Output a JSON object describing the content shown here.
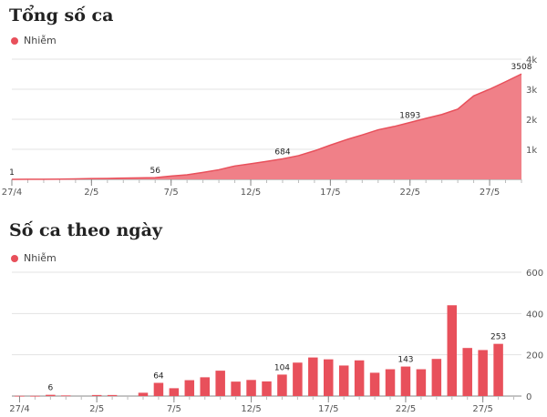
{
  "colors": {
    "series": "#e8505b",
    "area_fill": "#f08088",
    "grid": "#e3e3e3",
    "axis": "#888888"
  },
  "chart_data": [
    {
      "type": "area",
      "title": "Tổng số ca",
      "legend": [
        "Nhiễm"
      ],
      "legend_position": "top-left",
      "xlabel": "",
      "ylabel": "",
      "grid": true,
      "ylim": [
        0,
        4000
      ],
      "y_ticks": [
        1000,
        2000,
        3000,
        4000
      ],
      "y_tick_labels": [
        "1k",
        "2k",
        "3k",
        "4k"
      ],
      "x_tick_labels": [
        "27/4",
        "2/5",
        "7/5",
        "12/5",
        "17/5",
        "22/5",
        "27/5"
      ],
      "x": [
        "27/4",
        "28/4",
        "29/4",
        "30/4",
        "1/5",
        "2/5",
        "3/5",
        "4/5",
        "5/5",
        "6/5",
        "7/5",
        "8/5",
        "9/5",
        "10/5",
        "11/5",
        "12/5",
        "13/5",
        "14/5",
        "15/5",
        "16/5",
        "17/5",
        "18/5",
        "19/5",
        "20/5",
        "21/5",
        "22/5",
        "23/5",
        "24/5",
        "25/5",
        "26/5",
        "27/5",
        "28/5",
        "29/5"
      ],
      "series": [
        {
          "name": "Nhiễm",
          "values": [
            1,
            2,
            4,
            8,
            15,
            25,
            32,
            40,
            48,
            56,
            110,
            150,
            230,
            320,
            445,
            520,
            600,
            684,
            790,
            950,
            1140,
            1320,
            1480,
            1650,
            1760,
            1893,
            2030,
            2160,
            2340,
            2780,
            3000,
            3250,
            3508
          ]
        }
      ],
      "data_labels": [
        {
          "x": "27/4",
          "value": "1"
        },
        {
          "x": "6/5",
          "value": "56"
        },
        {
          "x": "14/5",
          "value": "684"
        },
        {
          "x": "22/5",
          "value": "1893"
        },
        {
          "x": "29/5",
          "value": "3508"
        }
      ]
    },
    {
      "type": "bar",
      "title": "Số ca theo ngày",
      "legend": [
        "Nhiễm"
      ],
      "legend_position": "top-left",
      "xlabel": "",
      "ylabel": "",
      "grid": true,
      "ylim": [
        0,
        600
      ],
      "y_ticks": [
        0,
        200,
        400,
        600
      ],
      "y_tick_labels": [
        "0",
        "200",
        "400",
        "600"
      ],
      "x_tick_labels": [
        "27/4",
        "2/5",
        "7/5",
        "12/5",
        "17/5",
        "22/5",
        "27/5"
      ],
      "x": [
        "27/4",
        "28/4",
        "29/4",
        "30/4",
        "1/5",
        "2/5",
        "3/5",
        "4/5",
        "5/5",
        "6/5",
        "7/5",
        "8/5",
        "9/5",
        "10/5",
        "11/5",
        "12/5",
        "13/5",
        "14/5",
        "15/5",
        "16/5",
        "17/5",
        "18/5",
        "19/5",
        "20/5",
        "21/5",
        "22/5",
        "23/5",
        "24/5",
        "25/5",
        "26/5",
        "27/5",
        "28/5",
        "29/5"
      ],
      "series": [
        {
          "name": "Nhiễm",
          "values": [
            1,
            1,
            6,
            3,
            0,
            5,
            5,
            0,
            16,
            64,
            38,
            77,
            91,
            123,
            70,
            78,
            71,
            104,
            162,
            187,
            178,
            148,
            173,
            113,
            130,
            143,
            130,
            180,
            440,
            233,
            223,
            253,
            0
          ]
        }
      ],
      "data_labels": [
        {
          "x": "29/4",
          "value": "6"
        },
        {
          "x": "6/5",
          "value": "64"
        },
        {
          "x": "14/5",
          "value": "104"
        },
        {
          "x": "22/5",
          "value": "143"
        },
        {
          "x": "28/5",
          "value": "253"
        }
      ]
    }
  ]
}
